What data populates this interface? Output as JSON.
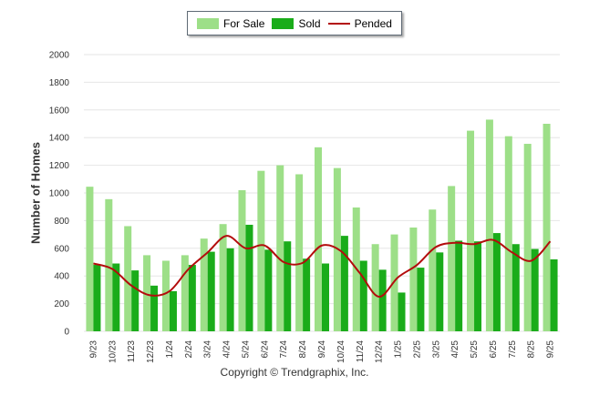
{
  "legend": {
    "for_sale_label": "For Sale",
    "sold_label": "Sold",
    "pended_label": "Pended"
  },
  "footer": {
    "copyright": "Copyright © Trendgraphix, Inc."
  },
  "colors": {
    "for_sale": "#9ddf88",
    "sold": "#1aac1a",
    "pended": "#b30c0c",
    "grid": "#e6e6e6"
  },
  "chart_data": {
    "type": "bar",
    "ylabel": "Number of Homes",
    "xlabel": "",
    "ylim": [
      0,
      2000
    ],
    "yticks": [
      0,
      200,
      400,
      600,
      800,
      1000,
      1200,
      1400,
      1600,
      1800,
      2000
    ],
    "grid": true,
    "legend_position": "top-center",
    "categories": [
      "9/23",
      "10/23",
      "11/23",
      "12/23",
      "1/24",
      "2/24",
      "3/24",
      "4/24",
      "5/24",
      "6/24",
      "7/24",
      "8/24",
      "9/24",
      "10/24",
      "11/24",
      "12/24",
      "1/25",
      "2/25",
      "3/25",
      "4/25",
      "5/25",
      "6/25",
      "7/25",
      "8/25",
      "9/25"
    ],
    "series": [
      {
        "name": "For Sale",
        "kind": "bar",
        "values": [
          1045,
          955,
          760,
          550,
          510,
          550,
          670,
          775,
          1020,
          1160,
          1200,
          1135,
          1330,
          1180,
          895,
          630,
          700,
          750,
          880,
          1050,
          1450,
          1530,
          1410,
          1355,
          1500
        ]
      },
      {
        "name": "Sold",
        "kind": "bar",
        "values": [
          480,
          490,
          440,
          330,
          290,
          480,
          575,
          600,
          770,
          590,
          650,
          525,
          490,
          690,
          510,
          445,
          280,
          460,
          570,
          655,
          650,
          710,
          630,
          595,
          520
        ]
      },
      {
        "name": "Pended",
        "kind": "line",
        "values": [
          490,
          450,
          330,
          260,
          290,
          450,
          570,
          690,
          600,
          620,
          500,
          495,
          620,
          580,
          420,
          250,
          390,
          480,
          610,
          640,
          630,
          660,
          570,
          510,
          650
        ]
      }
    ]
  }
}
